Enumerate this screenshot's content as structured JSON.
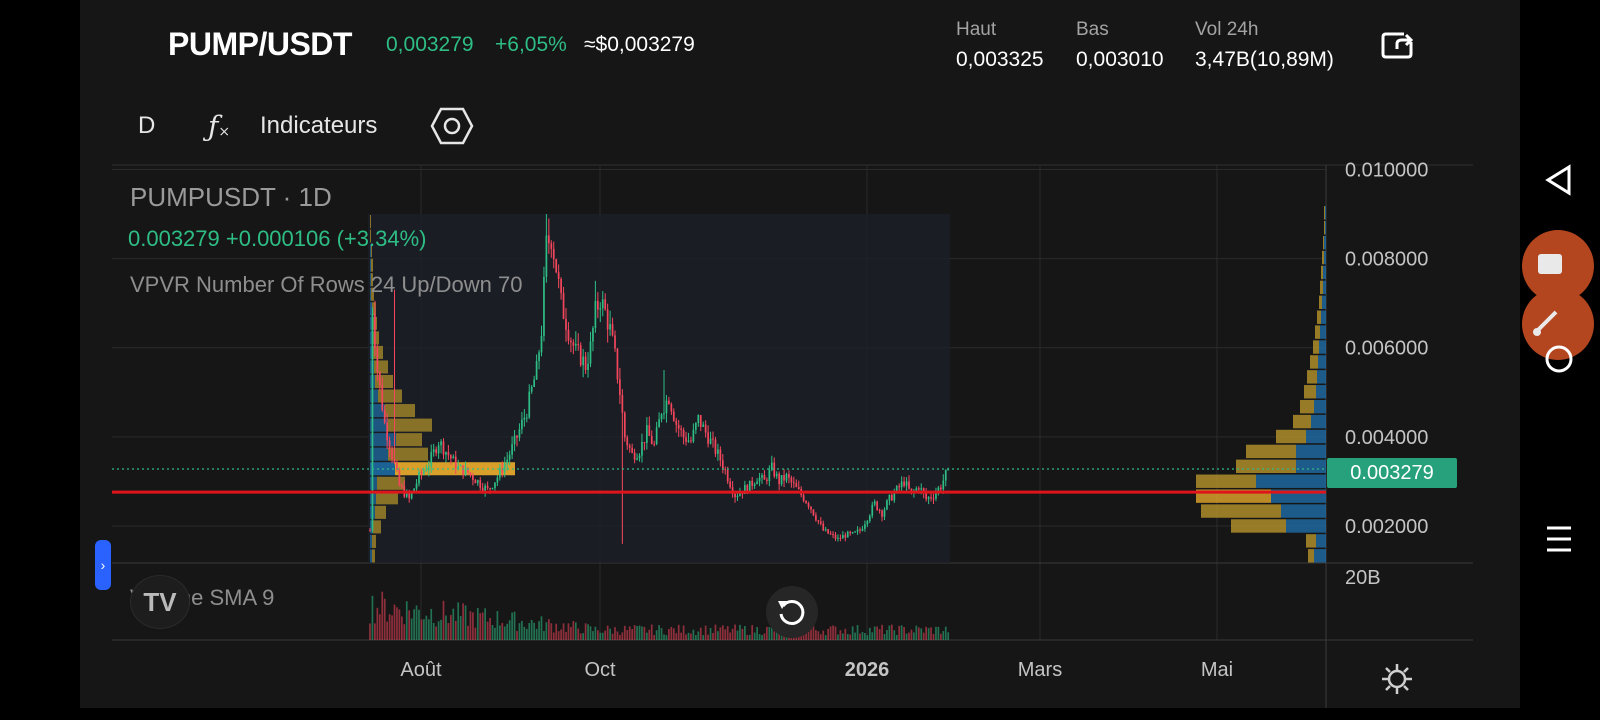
{
  "header": {
    "pair": "PUMP/USDT",
    "price": "0,003279",
    "change": "+6,05%",
    "usd_price": "≈$0,003279",
    "stats": [
      {
        "label": "Haut",
        "value": "0,003325"
      },
      {
        "label": "Bas",
        "value": "0,003010"
      },
      {
        "label": "Vol 24h",
        "value": "3,47B(10,89M)"
      }
    ]
  },
  "toolbar": {
    "timeframe": "D",
    "fx_icon": "fx-icon",
    "indicators_label": "Indicateurs",
    "settings_icon": "hexagon-settings-icon"
  },
  "legend": {
    "symbol": "PUMPUSDT · 1D",
    "price_line": "0.003279  +0.000106 (+3.34%)",
    "vpvr": "VPVR Number Of Rows 24 Up/Down 70",
    "volume": "Volume SMA 9"
  },
  "current_price_tag": "0.003279",
  "colors": {
    "up": "#2ebd85",
    "down": "#f6465d",
    "poc_line": "#e0151b",
    "vpvr_up": "#1f6ea8",
    "vpvr_down": "#b8952a",
    "vpvr_poc": "#e3a82b",
    "price_tag": "#26a17b"
  },
  "chart_data": {
    "type": "candlestick",
    "symbol": "PUMPUSDT",
    "interval": "1D",
    "y_ticks": [
      "0.010000",
      "0.008000",
      "0.006000",
      "0.004000",
      "0.002000"
    ],
    "ylim": [
      0.00117,
      0.0101
    ],
    "x_ticks": [
      "Août",
      "Oct",
      "2026",
      "Mars",
      "Mai"
    ],
    "volume_axis_label": "20B",
    "current_price": 0.003279,
    "poc_price": 0.00276,
    "grid": true,
    "close_path": [
      [
        0,
        0.0019
      ],
      [
        1,
        0.0069
      ],
      [
        3,
        0.0055
      ],
      [
        6,
        0.0043
      ],
      [
        9,
        0.0036
      ],
      [
        12,
        0.0029
      ],
      [
        16,
        0.0026
      ],
      [
        20,
        0.0031
      ],
      [
        24,
        0.0034
      ],
      [
        28,
        0.0039
      ],
      [
        32,
        0.0036
      ],
      [
        36,
        0.0033
      ],
      [
        40,
        0.0032
      ],
      [
        44,
        0.003
      ],
      [
        48,
        0.0028
      ],
      [
        52,
        0.0031
      ],
      [
        56,
        0.0035
      ],
      [
        60,
        0.004
      ],
      [
        64,
        0.0046
      ],
      [
        68,
        0.0055
      ],
      [
        70,
        0.0064
      ],
      [
        72,
        0.0083
      ],
      [
        74,
        0.0085
      ],
      [
        76,
        0.0078
      ],
      [
        78,
        0.007
      ],
      [
        80,
        0.0066
      ],
      [
        82,
        0.0062
      ],
      [
        84,
        0.0059
      ],
      [
        86,
        0.0058
      ],
      [
        88,
        0.0056
      ],
      [
        90,
        0.006
      ],
      [
        92,
        0.0068
      ],
      [
        94,
        0.0071
      ],
      [
        96,
        0.0068
      ],
      [
        98,
        0.0064
      ],
      [
        100,
        0.0058
      ],
      [
        102,
        0.005
      ],
      [
        104,
        0.004
      ],
      [
        107,
        0.0036
      ],
      [
        110,
        0.0037
      ],
      [
        113,
        0.0041
      ],
      [
        116,
        0.0038
      ],
      [
        119,
        0.0046
      ],
      [
        122,
        0.0049
      ],
      [
        125,
        0.0043
      ],
      [
        128,
        0.004
      ],
      [
        131,
        0.0039
      ],
      [
        134,
        0.0044
      ],
      [
        137,
        0.0041
      ],
      [
        140,
        0.0038
      ],
      [
        143,
        0.0035
      ],
      [
        146,
        0.0031
      ],
      [
        149,
        0.0027
      ],
      [
        152,
        0.0028
      ],
      [
        155,
        0.0029
      ],
      [
        158,
        0.0031
      ],
      [
        161,
        0.003
      ],
      [
        164,
        0.0033
      ],
      [
        167,
        0.003
      ],
      [
        170,
        0.0031
      ],
      [
        173,
        0.0029
      ],
      [
        176,
        0.0027
      ],
      [
        179,
        0.0025
      ],
      [
        182,
        0.0022
      ],
      [
        185,
        0.0019
      ],
      [
        188,
        0.0018
      ],
      [
        191,
        0.0017
      ],
      [
        194,
        0.0018
      ],
      [
        197,
        0.0018
      ],
      [
        200,
        0.0019
      ],
      [
        203,
        0.0022
      ],
      [
        206,
        0.0025
      ],
      [
        209,
        0.0023
      ],
      [
        212,
        0.0026
      ],
      [
        215,
        0.0028
      ],
      [
        218,
        0.003
      ],
      [
        221,
        0.0027
      ],
      [
        224,
        0.0029
      ],
      [
        227,
        0.0026
      ],
      [
        230,
        0.0027
      ],
      [
        233,
        0.0029
      ],
      [
        236,
        0.003279
      ]
    ],
    "wicks": {
      "10": 0.0073,
      "72": 0.009,
      "92": 0.0075,
      "103": 0.0016,
      "120": 0.0055
    },
    "vpvr_rows_left": [
      {
        "up": 2,
        "down": 3
      },
      {
        "up": 2,
        "down": 4
      },
      {
        "up": 3,
        "down": 8
      },
      {
        "up": 5,
        "down": 11
      },
      {
        "up": 6,
        "down": 22
      },
      {
        "up": 7,
        "down": 28
      },
      {
        "up": 25,
        "down": 120
      },
      {
        "up": 18,
        "down": 40
      },
      {
        "up": 26,
        "down": 26
      },
      {
        "up": 18,
        "down": 44
      },
      {
        "up": 15,
        "down": 30
      },
      {
        "up": 8,
        "down": 24
      },
      {
        "up": 5,
        "down": 18
      },
      {
        "up": 4,
        "down": 14
      },
      {
        "up": 3,
        "down": 10
      },
      {
        "up": 2,
        "down": 7
      },
      {
        "up": 2,
        "down": 5
      },
      {
        "up": 2,
        "down": 4
      },
      {
        "up": 1,
        "down": 3
      },
      {
        "up": 1,
        "down": 2
      },
      {
        "up": 1,
        "down": 2
      },
      {
        "up": 1,
        "down": 1
      },
      {
        "up": 0,
        "down": 1
      },
      {
        "up": 0,
        "down": 1
      }
    ],
    "vpvr_rows_right": [
      {
        "up": 12,
        "down": 6
      },
      {
        "up": 10,
        "down": 10
      },
      {
        "up": 40,
        "down": 55
      },
      {
        "up": 45,
        "down": 80
      },
      {
        "up": 55,
        "down": 75
      },
      {
        "up": 70,
        "down": 60
      },
      {
        "up": 30,
        "down": 60
      },
      {
        "up": 30,
        "down": 50
      },
      {
        "up": 20,
        "down": 30
      },
      {
        "up": 15,
        "down": 18
      },
      {
        "up": 12,
        "down": 14
      },
      {
        "up": 10,
        "down": 12
      },
      {
        "up": 9,
        "down": 10
      },
      {
        "up": 8,
        "down": 8
      },
      {
        "up": 7,
        "down": 6
      },
      {
        "up": 6,
        "down": 5
      },
      {
        "up": 5,
        "down": 4
      },
      {
        "up": 4,
        "down": 3
      },
      {
        "up": 3,
        "down": 3
      },
      {
        "up": 3,
        "down": 2
      },
      {
        "up": 2,
        "down": 2
      },
      {
        "up": 2,
        "down": 1
      },
      {
        "up": 1,
        "down": 1
      },
      {
        "up": 1,
        "down": 1
      }
    ]
  },
  "nav": {
    "back_icon": "triangle-back-icon",
    "home_icon": "circle-home-icon",
    "menu_icon": "hamburger-menu-icon"
  }
}
